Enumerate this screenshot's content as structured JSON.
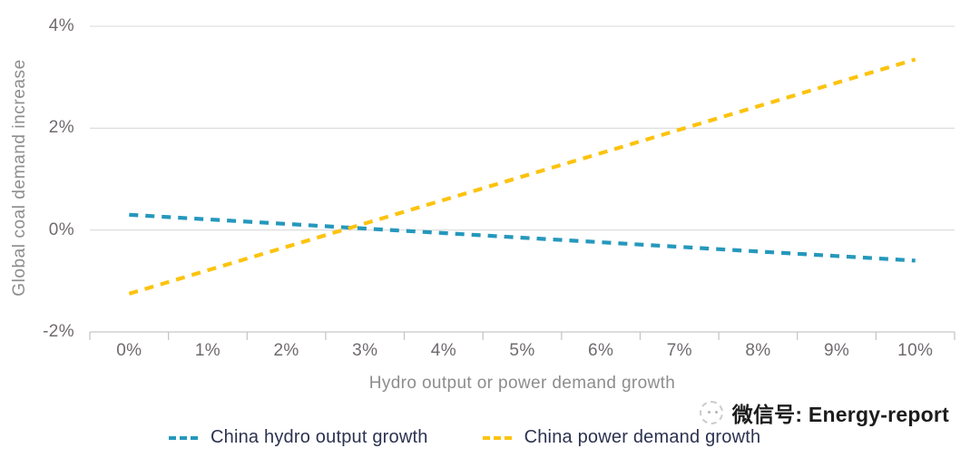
{
  "watermark": {
    "icon": "wechat-sketch-icon",
    "label": "微信号: Energy-report"
  },
  "chart_data": {
    "type": "line",
    "title": "",
    "xlabel": "Hydro output or power demand growth",
    "ylabel": "Global coal demand increase",
    "categories": [
      "0%",
      "1%",
      "2%",
      "3%",
      "4%",
      "5%",
      "6%",
      "7%",
      "8%",
      "9%",
      "10%"
    ],
    "x_values": [
      0,
      1,
      2,
      3,
      4,
      5,
      6,
      7,
      8,
      9,
      10
    ],
    "ylim": [
      -2,
      4
    ],
    "yticks": [
      {
        "value": 4,
        "label": "4%"
      },
      {
        "value": 2,
        "label": "2%"
      },
      {
        "value": 0,
        "label": "0%"
      },
      {
        "value": -2,
        "label": "-2%"
      }
    ],
    "grid": "horizontal",
    "legend_position": "bottom",
    "line_style": "dashed",
    "colors": {
      "grid": "#dadada",
      "axis": "#c6c6c6",
      "hydro_line": "#2598bc",
      "power_line": "#fcc30f"
    },
    "series": [
      {
        "name": "China hydro output growth",
        "color": "#2598bc",
        "values": [
          0.3,
          0.21,
          0.12,
          0.03,
          -0.06,
          -0.15,
          -0.24,
          -0.33,
          -0.42,
          -0.51,
          -0.6
        ]
      },
      {
        "name": "China power demand growth",
        "color": "#fcc30f",
        "values": [
          -1.25,
          -0.79,
          -0.33,
          0.13,
          0.59,
          1.05,
          1.51,
          1.97,
          2.43,
          2.89,
          3.35
        ]
      }
    ]
  }
}
